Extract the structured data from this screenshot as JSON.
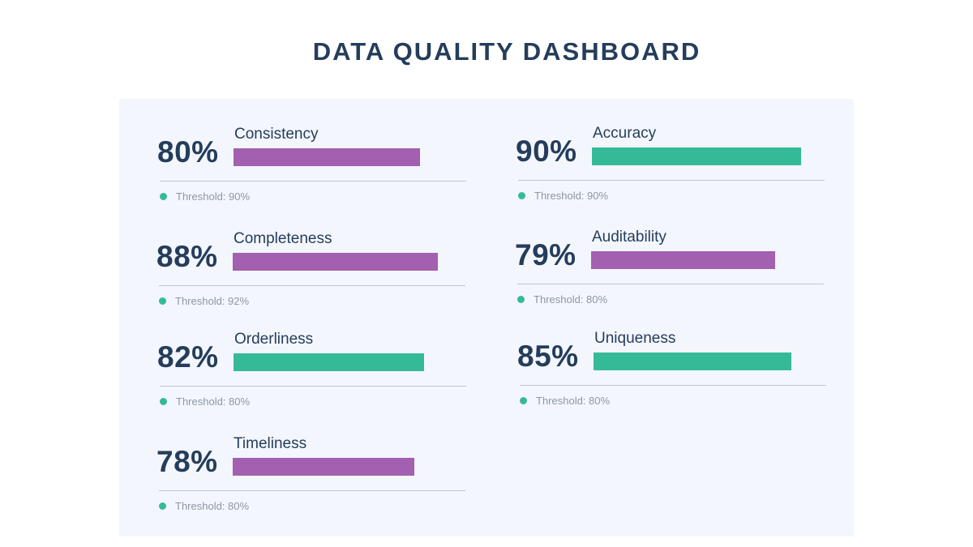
{
  "title": "DATA QUALITY DASHBOARD",
  "colors": {
    "title": "#253d5b",
    "panel": "#f3f6fd",
    "below_threshold": "#a35fb0",
    "meets_threshold": "#35ba97",
    "threshold_dot": "#35ba97"
  },
  "metrics": [
    {
      "name": "Consistency",
      "value_label": "80%",
      "threshold_label": "Threshold: 90%",
      "status": "below"
    },
    {
      "name": "Completeness",
      "value_label": "88%",
      "threshold_label": "Threshold: 92%",
      "status": "below"
    },
    {
      "name": "Orderliness",
      "value_label": "82%",
      "threshold_label": "Threshold: 80%",
      "status": "meets"
    },
    {
      "name": "Timeliness",
      "value_label": "78%",
      "threshold_label": "Threshold: 80%",
      "status": "below"
    },
    {
      "name": "Accuracy",
      "value_label": "90%",
      "threshold_label": "Threshold: 90%",
      "status": "meets"
    },
    {
      "name": "Auditability",
      "value_label": "79%",
      "threshold_label": "Threshold: 80%",
      "status": "below"
    },
    {
      "name": "Uniqueness",
      "value_label": "85%",
      "threshold_label": "Threshold: 80%",
      "status": "meets"
    }
  ],
  "chart_data": {
    "type": "bar",
    "title": "DATA QUALITY DASHBOARD",
    "categories": [
      "Consistency",
      "Completeness",
      "Orderliness",
      "Timeliness",
      "Accuracy",
      "Auditability",
      "Uniqueness"
    ],
    "values": [
      80,
      88,
      82,
      78,
      90,
      79,
      85
    ],
    "thresholds": [
      90,
      92,
      80,
      80,
      90,
      80,
      80
    ],
    "unit": "%"
  }
}
